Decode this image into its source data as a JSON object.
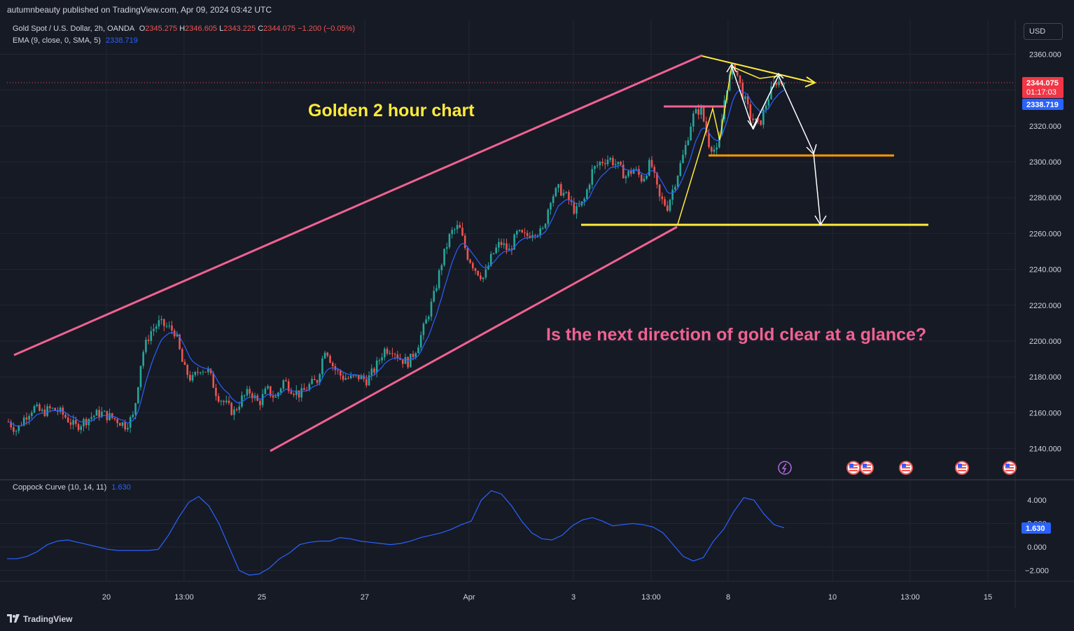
{
  "header": {
    "publish_line": "autumnbeauty published on TradingView.com, Apr 09, 2024 03:42 UTC"
  },
  "legend": {
    "symbol": "Gold Spot / U.S. Dollar, 2h, OANDA",
    "o_label": "O",
    "o_value": "2345.275",
    "h_label": "H",
    "h_value": "2346.605",
    "l_label": "L",
    "l_value": "2343.225",
    "c_label": "C",
    "c_value": "2344.075",
    "change": "−1.200 (−0.05%)",
    "ema_label": "EMA (9, close, 0, SMA, 5)",
    "ema_value": "2338.719"
  },
  "indicator": {
    "label": "Coppock Curve (10, 14, 11)",
    "value": "1.630"
  },
  "currency_button": "USD",
  "price_badges": {
    "last": "2344.075",
    "countdown": "01:17:03",
    "ema": "2338.719",
    "coppock": "1.630"
  },
  "annotations": {
    "title": "Golden 2 hour chart",
    "question": "Is the next direction of gold clear at a glance?"
  },
  "footer": {
    "brand": "TradingView"
  },
  "colors": {
    "bull": "#26a69a",
    "bear": "#ef5350",
    "ema": "#2962ff",
    "channel": "#f06292",
    "yellow": "#ffeb3b",
    "orange": "#ff9800"
  },
  "chart_data": {
    "type": "candlestick",
    "symbol": "XAUUSD",
    "timeframe": "2h",
    "price_axis": {
      "ticks": [
        2140,
        2160,
        2180,
        2200,
        2220,
        2240,
        2260,
        2280,
        2300,
        2320,
        2340,
        2360
      ],
      "tick_labels": [
        "2140.000",
        "2160.000",
        "2180.000",
        "2200.000",
        "2220.000",
        "2240.000",
        "2260.000",
        "2280.000",
        "2300.000",
        "2320.000",
        "2340.000",
        "2360.000"
      ],
      "range": [
        2125,
        2378
      ]
    },
    "time_axis": {
      "labels": [
        "20",
        "13:00",
        "25",
        "27",
        "Apr",
        "3",
        "13:00",
        "8",
        "10",
        "13:00",
        "15"
      ]
    },
    "price_path": [
      2155,
      2150,
      2158,
      2163,
      2160,
      2162,
      2161,
      2157,
      2152,
      2155,
      2158,
      2160,
      2158,
      2156,
      2153,
      2158,
      2192,
      2205,
      2210,
      2208,
      2205,
      2185,
      2178,
      2185,
      2183,
      2170,
      2165,
      2160,
      2168,
      2172,
      2165,
      2173,
      2168,
      2178,
      2173,
      2170,
      2175,
      2178,
      2197,
      2185,
      2180,
      2179,
      2180,
      2178,
      2185,
      2195,
      2196,
      2190,
      2188,
      2197,
      2210,
      2225,
      2245,
      2260,
      2264,
      2248,
      2240,
      2235,
      2248,
      2255,
      2250,
      2260,
      2258,
      2262,
      2260,
      2280,
      2285,
      2280,
      2272,
      2278,
      2295,
      2300,
      2302,
      2298,
      2292,
      2296,
      2290,
      2300,
      2280,
      2275,
      2290,
      2305,
      2325,
      2330,
      2310,
      2305,
      2340,
      2355,
      2338,
      2325,
      2320,
      2335,
      2345,
      2344
    ],
    "ema_last": 2338.719,
    "last_price": 2344.075,
    "indicator": {
      "name": "Coppock Curve",
      "params": [
        10,
        14,
        11
      ],
      "ticks": [
        -2,
        0,
        2,
        4
      ],
      "tick_labels": [
        "−2.000",
        "0.000",
        "2.000",
        "4.000"
      ],
      "range": [
        -3,
        5.5
      ],
      "values": [
        -1.0,
        -1.0,
        -0.8,
        -0.4,
        0.2,
        0.5,
        0.6,
        0.4,
        0.2,
        0.0,
        -0.2,
        -0.3,
        -0.3,
        -0.3,
        -0.3,
        -0.2,
        1.0,
        2.5,
        3.8,
        4.3,
        3.5,
        2.0,
        0.0,
        -2.0,
        -2.4,
        -2.3,
        -1.8,
        -1.0,
        -0.5,
        0.2,
        0.4,
        0.5,
        0.5,
        0.8,
        0.7,
        0.5,
        0.4,
        0.3,
        0.2,
        0.3,
        0.5,
        0.8,
        1.0,
        1.2,
        1.5,
        1.9,
        2.2,
        4.0,
        4.8,
        4.5,
        3.5,
        2.2,
        1.2,
        0.7,
        0.6,
        1.0,
        1.8,
        2.3,
        2.5,
        2.2,
        1.8,
        1.9,
        2.0,
        1.9,
        1.7,
        1.2,
        0.2,
        -0.8,
        -1.2,
        -0.9,
        0.5,
        1.5,
        3.0,
        4.2,
        4.0,
        2.8,
        1.9,
        1.63
      ]
    }
  }
}
